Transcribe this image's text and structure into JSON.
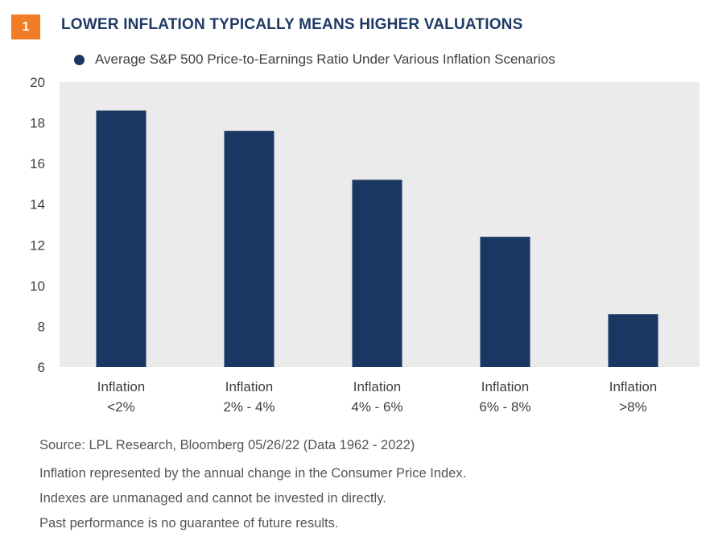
{
  "header": {
    "badge": "1",
    "title": "LOWER INFLATION TYPICALLY MEANS HIGHER VALUATIONS"
  },
  "colors": {
    "bar": "#1a3763",
    "plot_bg": "#ebebeb",
    "badge": "#f07d26",
    "title": "#1f3a64"
  },
  "chart_data": {
    "type": "bar",
    "categories": [
      [
        "Inflation",
        "<2%"
      ],
      [
        "Inflation",
        "2% - 4%"
      ],
      [
        "Inflation",
        "4% - 6%"
      ],
      [
        "Inflation",
        "6% - 8%"
      ],
      [
        "Inflation",
        ">8%"
      ]
    ],
    "series": [
      {
        "name": "Average S&P 500 Price-to-Earnings Ratio Under Various Inflation Scenarios",
        "values": [
          18.6,
          17.6,
          15.2,
          12.4,
          8.6
        ]
      }
    ],
    "ylim": [
      6,
      20
    ],
    "yticks": [
      6,
      8,
      10,
      12,
      14,
      16,
      18,
      20
    ],
    "legend_position": "top-left",
    "grid": false
  },
  "notes": {
    "source": "Source: LPL Research, Bloomberg  05/26/22 (Data 1962 - 2022)",
    "line1": "Inflation represented by the annual change in the Consumer Price Index.",
    "line2": "Indexes are unmanaged and cannot be invested in directly.",
    "line3": "Past performance is no guarantee of future results."
  }
}
